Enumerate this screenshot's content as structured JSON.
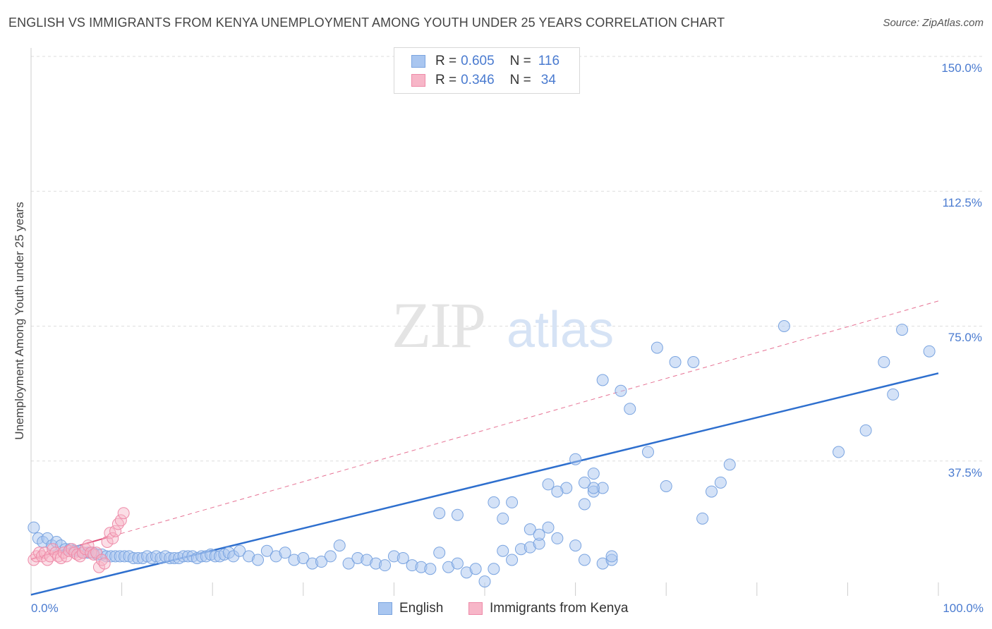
{
  "header": {
    "title": "ENGLISH VS IMMIGRANTS FROM KENYA UNEMPLOYMENT AMONG YOUTH UNDER 25 YEARS CORRELATION CHART",
    "source": "Source: ZipAtlas.com"
  },
  "watermark": {
    "zip": "ZIP",
    "atlas": "atlas"
  },
  "legend": {
    "english": {
      "r_label": "R =",
      "r_value": "0.605",
      "n_label": "N =",
      "n_value": "116"
    },
    "kenya": {
      "r_label": "R =",
      "r_value": "0.346",
      "n_label": "N =",
      "n_value": "34"
    }
  },
  "colors": {
    "english_fill": "#a9c6f0",
    "english_stroke": "#7aa4e0",
    "english_line": "#2e6fce",
    "kenya_fill": "#f7b6c8",
    "kenya_stroke": "#ee8aa8",
    "kenya_line": "#e0507a",
    "tick_text": "#4a7bd0",
    "grid": "#dedede"
  },
  "chart_data": {
    "type": "scatter",
    "title": "ENGLISH VS IMMIGRANTS FROM KENYA UNEMPLOYMENT AMONG YOUTH UNDER 25 YEARS CORRELATION CHART",
    "xlabel": "",
    "ylabel": "Unemployment Among Youth under 25 years",
    "xlim": [
      0,
      100
    ],
    "ylim": [
      0,
      150
    ],
    "x_tick_labels": [
      "0.0%",
      "100.0%"
    ],
    "y_ticks": [
      37.5,
      75.0,
      112.5,
      150.0
    ],
    "y_tick_labels": [
      "37.5%",
      "75.0%",
      "112.5%",
      "150.0%"
    ],
    "grid": true,
    "legend_position": "bottom-center",
    "series": [
      {
        "name": "English",
        "r": 0.605,
        "n": 116,
        "trend": {
          "x": [
            0,
            100
          ],
          "y": [
            0.3,
            61.9
          ]
        },
        "points": [
          [
            0.3,
            19
          ],
          [
            0.8,
            16
          ],
          [
            1.3,
            15
          ],
          [
            1.8,
            16
          ],
          [
            2.3,
            14
          ],
          [
            2.8,
            15
          ],
          [
            3.3,
            14
          ],
          [
            3.8,
            13
          ],
          [
            4.3,
            13
          ],
          [
            4.8,
            12.5
          ],
          [
            5.3,
            12.5
          ],
          [
            5.8,
            12
          ],
          [
            6.3,
            12
          ],
          [
            6.8,
            12
          ],
          [
            7.3,
            11.5
          ],
          [
            7.8,
            11.5
          ],
          [
            8.3,
            11
          ],
          [
            8.8,
            11
          ],
          [
            9.3,
            11
          ],
          [
            9.8,
            11
          ],
          [
            10.3,
            11
          ],
          [
            10.8,
            11
          ],
          [
            11.3,
            10.5
          ],
          [
            11.8,
            10.5
          ],
          [
            12.3,
            10.5
          ],
          [
            12.8,
            11
          ],
          [
            13.3,
            10.5
          ],
          [
            13.8,
            11
          ],
          [
            14.3,
            10.5
          ],
          [
            14.8,
            11
          ],
          [
            15.3,
            10.5
          ],
          [
            15.8,
            10.5
          ],
          [
            16.3,
            10.5
          ],
          [
            16.8,
            11
          ],
          [
            17.3,
            11
          ],
          [
            17.8,
            11
          ],
          [
            18.3,
            10.5
          ],
          [
            18.8,
            11
          ],
          [
            19.3,
            11
          ],
          [
            19.8,
            11.5
          ],
          [
            20.3,
            11
          ],
          [
            20.8,
            11
          ],
          [
            21.3,
            11.5
          ],
          [
            21.8,
            12
          ],
          [
            22.3,
            11
          ],
          [
            23,
            12.5
          ],
          [
            24,
            11
          ],
          [
            25,
            10
          ],
          [
            26,
            12.5
          ],
          [
            27,
            11
          ],
          [
            28,
            12
          ],
          [
            29,
            10
          ],
          [
            30,
            10.5
          ],
          [
            31,
            9
          ],
          [
            32,
            9.5
          ],
          [
            33,
            11
          ],
          [
            34,
            14
          ],
          [
            35,
            9
          ],
          [
            36,
            10.5
          ],
          [
            37,
            10
          ],
          [
            38,
            9
          ],
          [
            39,
            8.5
          ],
          [
            40,
            11
          ],
          [
            41,
            10.5
          ],
          [
            42,
            8.5
          ],
          [
            43,
            8
          ],
          [
            44,
            7.5
          ],
          [
            45,
            12
          ],
          [
            46,
            8
          ],
          [
            47,
            9
          ],
          [
            48,
            6.5
          ],
          [
            49,
            7.5
          ],
          [
            50,
            4
          ],
          [
            51,
            7.5
          ],
          [
            52,
            12.5
          ],
          [
            53,
            10
          ],
          [
            54,
            13
          ],
          [
            55,
            13.5
          ],
          [
            56,
            14.5
          ],
          [
            45,
            23
          ],
          [
            47,
            22.5
          ],
          [
            51,
            26
          ],
          [
            52,
            21.5
          ],
          [
            53,
            26
          ],
          [
            55,
            18.5
          ],
          [
            56,
            17
          ],
          [
            58,
            16
          ],
          [
            60,
            14
          ],
          [
            61,
            10
          ],
          [
            63,
            9
          ],
          [
            64,
            10
          ],
          [
            57,
            19
          ],
          [
            59,
            30
          ],
          [
            61,
            25.5
          ],
          [
            62,
            34
          ],
          [
            62,
            29
          ],
          [
            63,
            30
          ],
          [
            58,
            29
          ],
          [
            57,
            31
          ],
          [
            62,
            30
          ],
          [
            64,
            11
          ],
          [
            60,
            38
          ],
          [
            61,
            31.5
          ],
          [
            63,
            60
          ],
          [
            66,
            52
          ],
          [
            69,
            69
          ],
          [
            65,
            57
          ],
          [
            68,
            40
          ],
          [
            71,
            65
          ],
          [
            73,
            65
          ],
          [
            70,
            30.5
          ],
          [
            74,
            21.5
          ],
          [
            76,
            31.5
          ],
          [
            75,
            29
          ],
          [
            77,
            36.5
          ],
          [
            83,
            75
          ],
          [
            89,
            40
          ],
          [
            92,
            46
          ],
          [
            95,
            56
          ],
          [
            94,
            65
          ],
          [
            96,
            74
          ],
          [
            99,
            68
          ]
        ]
      },
      {
        "name": "Immigrants from Kenya",
        "r": 0.346,
        "n": 34,
        "trend": {
          "x": [
            0,
            100
          ],
          "y": [
            10.2,
            82
          ]
        },
        "points": [
          [
            0.3,
            10
          ],
          [
            0.6,
            11
          ],
          [
            0.9,
            12
          ],
          [
            1.2,
            11
          ],
          [
            1.5,
            12
          ],
          [
            1.8,
            10
          ],
          [
            2.1,
            11
          ],
          [
            2.4,
            13
          ],
          [
            2.7,
            12
          ],
          [
            3.0,
            11
          ],
          [
            3.3,
            10.5
          ],
          [
            3.6,
            12
          ],
          [
            3.9,
            11
          ],
          [
            4.2,
            12.5
          ],
          [
            4.5,
            13
          ],
          [
            4.8,
            12
          ],
          [
            5.1,
            11.5
          ],
          [
            5.4,
            11
          ],
          [
            5.7,
            12
          ],
          [
            6.0,
            13
          ],
          [
            6.3,
            14
          ],
          [
            6.6,
            12
          ],
          [
            6.9,
            11.5
          ],
          [
            7.2,
            12
          ],
          [
            7.5,
            8
          ],
          [
            7.8,
            10
          ],
          [
            8.1,
            9
          ],
          [
            8.4,
            15
          ],
          [
            8.7,
            17.5
          ],
          [
            9.0,
            16
          ],
          [
            9.3,
            18
          ],
          [
            9.6,
            20
          ],
          [
            9.9,
            21
          ],
          [
            10.2,
            23
          ]
        ]
      }
    ]
  },
  "bottom_legend": {
    "english": "English",
    "kenya": "Immigrants from Kenya"
  }
}
